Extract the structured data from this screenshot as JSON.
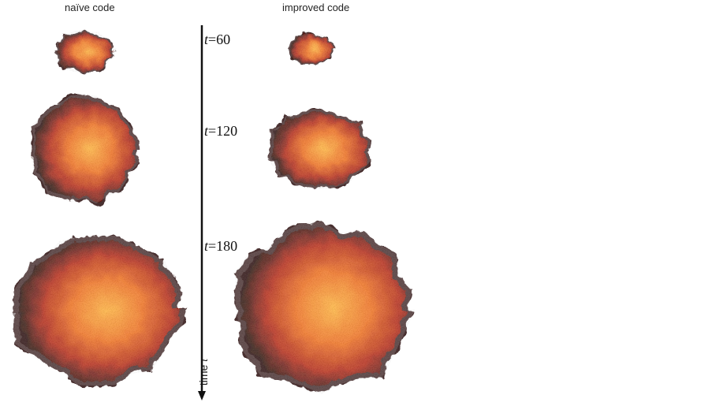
{
  "columns": {
    "naive_title": "naïve code",
    "improved_title": "improved code"
  },
  "time_axis": {
    "word": "time",
    "symbol": "t"
  },
  "time_labels": [
    {
      "symbol": "t",
      "value": "=60"
    },
    {
      "symbol": "t",
      "value": "=120"
    },
    {
      "symbol": "t",
      "value": "=180"
    }
  ],
  "colors": {
    "core": "#ffb13a",
    "mid": "#d9431a",
    "rim": "#2a1110",
    "axis": "#111111"
  }
}
